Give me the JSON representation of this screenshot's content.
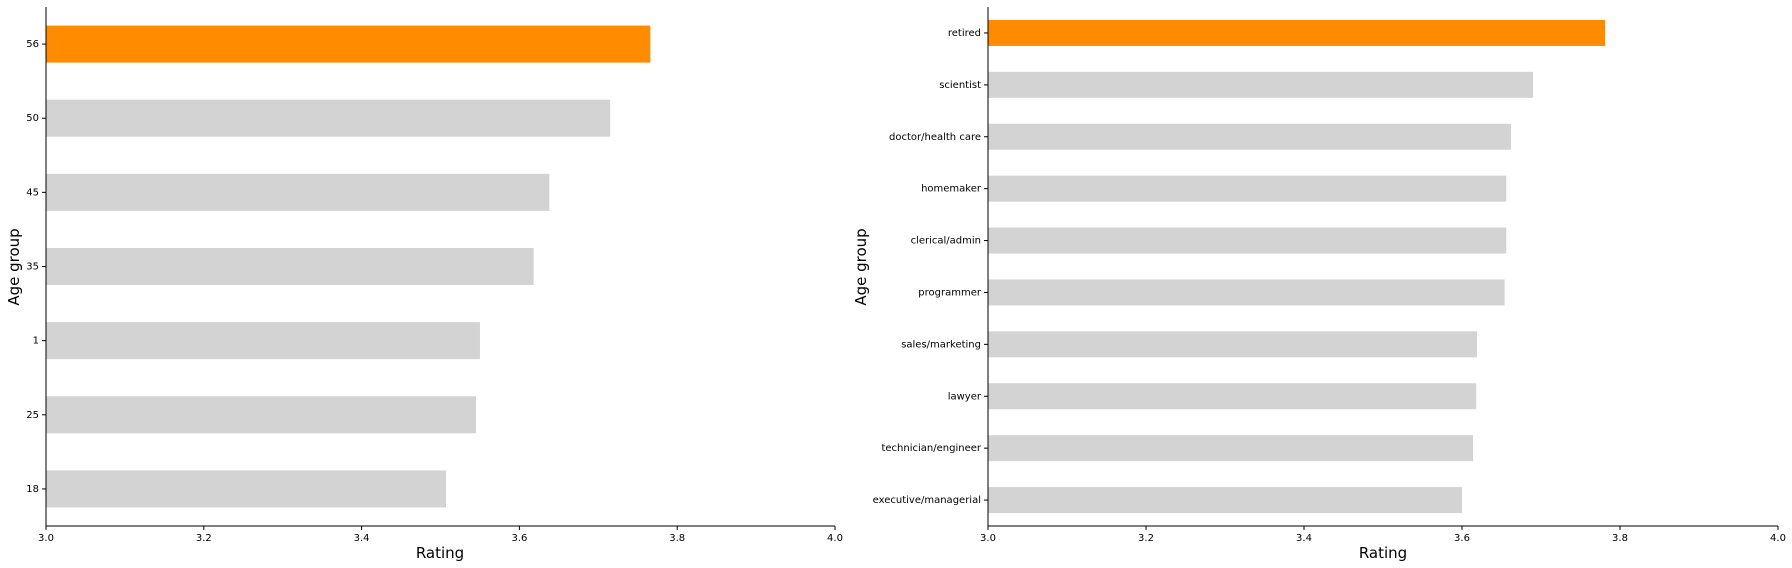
{
  "colors": {
    "highlight": "#ff8c00",
    "default": "#d3d3d3",
    "axis": "#000000"
  },
  "chart_data": [
    {
      "type": "bar",
      "orientation": "horizontal",
      "xlabel": "Rating",
      "ylabel": "Age group",
      "xlim": [
        3.0,
        4.0
      ],
      "xticks": [
        "3.0",
        "3.2",
        "3.4",
        "3.6",
        "3.8",
        "4.0"
      ],
      "grid": false,
      "categories": [
        "56",
        "50",
        "45",
        "35",
        "1",
        "25",
        "18"
      ],
      "values": [
        3.766,
        3.715,
        3.638,
        3.618,
        3.55,
        3.545,
        3.507
      ],
      "highlight_index": 0
    },
    {
      "type": "bar",
      "orientation": "horizontal",
      "xlabel": "Rating",
      "ylabel": "Age group",
      "xlim": [
        3.0,
        4.0
      ],
      "xticks": [
        "3.0",
        "3.2",
        "3.4",
        "3.6",
        "3.8",
        "4.0"
      ],
      "grid": false,
      "categories": [
        "retired",
        "scientist",
        "doctor/health care",
        "homemaker",
        "clerical/admin",
        "programmer",
        "sales/marketing",
        "lawyer",
        "technician/engineer",
        "executive/managerial"
      ],
      "values": [
        3.781,
        3.69,
        3.662,
        3.656,
        3.656,
        3.654,
        3.619,
        3.618,
        3.614,
        3.6
      ],
      "highlight_index": 0
    }
  ]
}
